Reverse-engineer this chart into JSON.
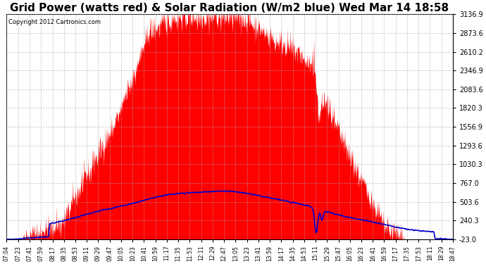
{
  "title": "Grid Power (watts red) & Solar Radiation (W/m2 blue) Wed Mar 14 18:58",
  "copyright": "Copyright 2012 Cartronics.com",
  "title_fontsize": 11,
  "background_color": "#ffffff",
  "plot_bg_color": "#ffffff",
  "grid_color": "#aaaaaa",
  "y_ticks": [
    -23.0,
    240.3,
    503.6,
    767.0,
    1030.3,
    1293.6,
    1556.9,
    1820.3,
    2083.6,
    2346.9,
    2610.2,
    2873.6,
    3136.9
  ],
  "y_min": -23.0,
  "y_max": 3136.9,
  "solar_color": "#ff0000",
  "radiation_color": "#0000cc",
  "x_tick_labels": [
    "07:04",
    "07:23",
    "07:41",
    "07:59",
    "08:17",
    "08:35",
    "08:53",
    "09:11",
    "09:29",
    "09:47",
    "10:05",
    "10:23",
    "10:41",
    "10:59",
    "11:17",
    "11:35",
    "11:53",
    "12:11",
    "12:29",
    "12:47",
    "13:05",
    "13:23",
    "13:41",
    "13:59",
    "14:17",
    "14:35",
    "14:53",
    "15:11",
    "15:29",
    "15:47",
    "16:05",
    "16:23",
    "16:41",
    "16:59",
    "17:17",
    "17:35",
    "17:53",
    "18:11",
    "18:29",
    "18:47"
  ]
}
